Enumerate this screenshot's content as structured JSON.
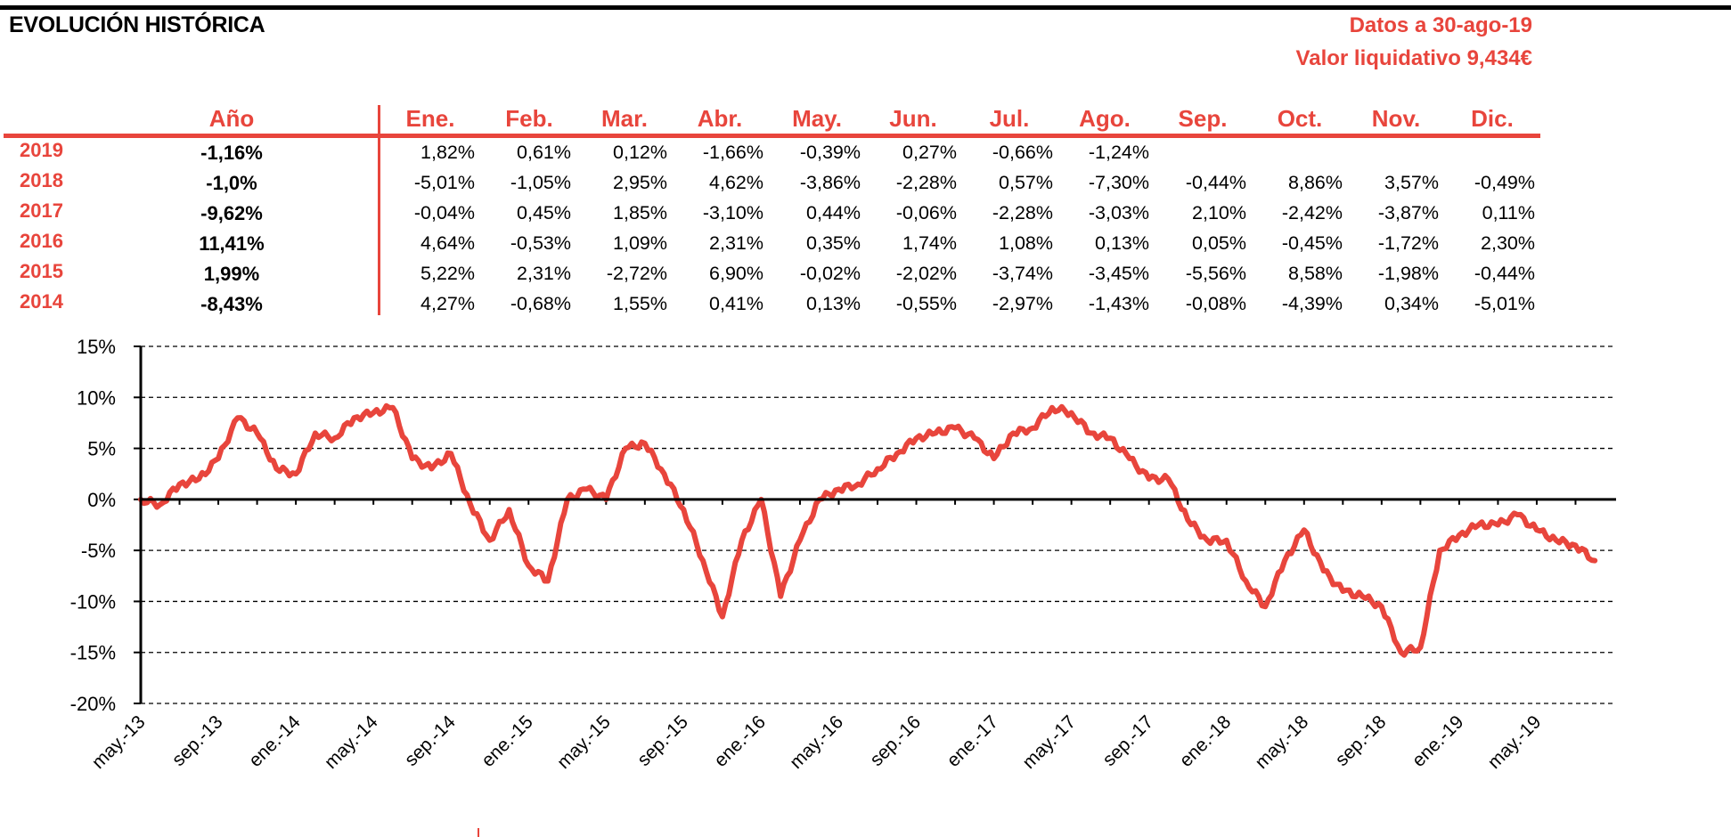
{
  "header": {
    "title": "EVOLUCIÓN HISTÓRICA",
    "date_label": "Datos a 30-ago-19",
    "nav_label": "Valor liquidativo 9,434€"
  },
  "table": {
    "columns": [
      "Año",
      "Ene.",
      "Feb.",
      "Mar.",
      "Abr.",
      "May.",
      "Jun.",
      "Jul.",
      "Ago.",
      "Sep.",
      "Oct.",
      "Nov.",
      "Dic."
    ],
    "rows": [
      {
        "year": "2019",
        "annual": "-1,16%",
        "months": [
          "1,82%",
          "0,61%",
          "0,12%",
          "-1,66%",
          "-0,39%",
          "0,27%",
          "-0,66%",
          "-1,24%",
          "",
          "",
          "",
          ""
        ]
      },
      {
        "year": "2018",
        "annual": "-1,0%",
        "months": [
          "-5,01%",
          "-1,05%",
          "2,95%",
          "4,62%",
          "-3,86%",
          "-2,28%",
          "0,57%",
          "-7,30%",
          "-0,44%",
          "8,86%",
          "3,57%",
          "-0,49%"
        ]
      },
      {
        "year": "2017",
        "annual": "-9,62%",
        "months": [
          "-0,04%",
          "0,45%",
          "1,85%",
          "-3,10%",
          "0,44%",
          "-0,06%",
          "-2,28%",
          "-3,03%",
          "2,10%",
          "-2,42%",
          "-3,87%",
          "0,11%"
        ]
      },
      {
        "year": "2016",
        "annual": "11,41%",
        "months": [
          "4,64%",
          "-0,53%",
          "1,09%",
          "2,31%",
          "0,35%",
          "1,74%",
          "1,08%",
          "0,13%",
          "0,05%",
          "-0,45%",
          "-1,72%",
          "2,30%"
        ]
      },
      {
        "year": "2015",
        "annual": "1,99%",
        "months": [
          "5,22%",
          "2,31%",
          "-2,72%",
          "6,90%",
          "-0,02%",
          "-2,02%",
          "-3,74%",
          "-3,45%",
          "-5,56%",
          "8,58%",
          "-1,98%",
          "-0,44%"
        ]
      },
      {
        "year": "2014",
        "annual": "-8,43%",
        "months": [
          "4,27%",
          "-0,68%",
          "1,55%",
          "0,41%",
          "0,13%",
          "-0,55%",
          "-2,97%",
          "-1,43%",
          "-0,08%",
          "-4,39%",
          "0,34%",
          "-5,01%"
        ]
      }
    ]
  },
  "colors": {
    "accent": "#e8453c",
    "line": "#e8453c",
    "axis": "#000000",
    "grid": "#000000"
  },
  "chart_data": {
    "type": "line",
    "x_axis": "date",
    "x_ticks": [
      "may.-13",
      "sep.-13",
      "ene.-14",
      "may.-14",
      "sep.-14",
      "ene.-15",
      "may.-15",
      "sep.-15",
      "ene.-16",
      "may.-16",
      "sep.-16",
      "ene.-17",
      "may.-17",
      "sep.-17",
      "ene.-18",
      "may.-18",
      "sep.-18",
      "ene.-19",
      "may.-19"
    ],
    "y_ticks": [
      "15%",
      "10%",
      "5%",
      "0%",
      "-5%",
      "-10%",
      "-15%",
      "-20%"
    ],
    "ylim": [
      -20,
      15
    ],
    "grid": "horizontal dashed",
    "series": [
      {
        "x": [
          "2013-05",
          "2013-06",
          "2013-07",
          "2013-08",
          "2013-09",
          "2013-10",
          "2013-11",
          "2013-12",
          "2014-01",
          "2014-02",
          "2014-03",
          "2014-04",
          "2014-05",
          "2014-06",
          "2014-07",
          "2014-08",
          "2014-09",
          "2014-10",
          "2014-11",
          "2014-12",
          "2015-01",
          "2015-02",
          "2015-03",
          "2015-04",
          "2015-05",
          "2015-06",
          "2015-07",
          "2015-08",
          "2015-09",
          "2015-10",
          "2015-11",
          "2015-12",
          "2016-01",
          "2016-02",
          "2016-03",
          "2016-04",
          "2016-05",
          "2016-06",
          "2016-07",
          "2016-08",
          "2016-09",
          "2016-10",
          "2016-11",
          "2016-12",
          "2017-01",
          "2017-02",
          "2017-03",
          "2017-04",
          "2017-05",
          "2017-06",
          "2017-07",
          "2017-08",
          "2017-09",
          "2017-10",
          "2017-11",
          "2017-12",
          "2018-01",
          "2018-02",
          "2018-03",
          "2018-04",
          "2018-05",
          "2018-06",
          "2018-07",
          "2018-08",
          "2018-09",
          "2018-10",
          "2018-11",
          "2018-12",
          "2019-01",
          "2019-02",
          "2019-03",
          "2019-04",
          "2019-05",
          "2019-06",
          "2019-07",
          "2019-08"
        ],
        "y": [
          0,
          -0.5,
          1.5,
          2.0,
          4.0,
          8.0,
          6.5,
          3.0,
          2.5,
          6.5,
          6.0,
          8.0,
          8.5,
          9.0,
          4.0,
          3.0,
          4.5,
          -0.5,
          -4.0,
          -1.0,
          -6.5,
          -8.0,
          0.0,
          1.0,
          0.0,
          5.0,
          5.5,
          2.5,
          -1.0,
          -6.0,
          -11.5,
          -4.0,
          0.0,
          -9.5,
          -4.0,
          0.0,
          1.0,
          1.5,
          3.0,
          4.5,
          6.0,
          6.5,
          7.0,
          6.0,
          4.0,
          6.5,
          7.0,
          9.0,
          8.5,
          6.5,
          6.0,
          4.0,
          2.0,
          2.0,
          -2.0,
          -4.0,
          -4.0,
          -8.0,
          -10.5,
          -6.0,
          -3.0,
          -7.0,
          -9.0,
          -9.5,
          -10.5,
          -15.0,
          -14.5,
          -5.0,
          -3.5,
          -2.5,
          -2.5,
          -1.5,
          -3.0,
          -4.0,
          -4.5,
          -6.0
        ]
      }
    ]
  }
}
